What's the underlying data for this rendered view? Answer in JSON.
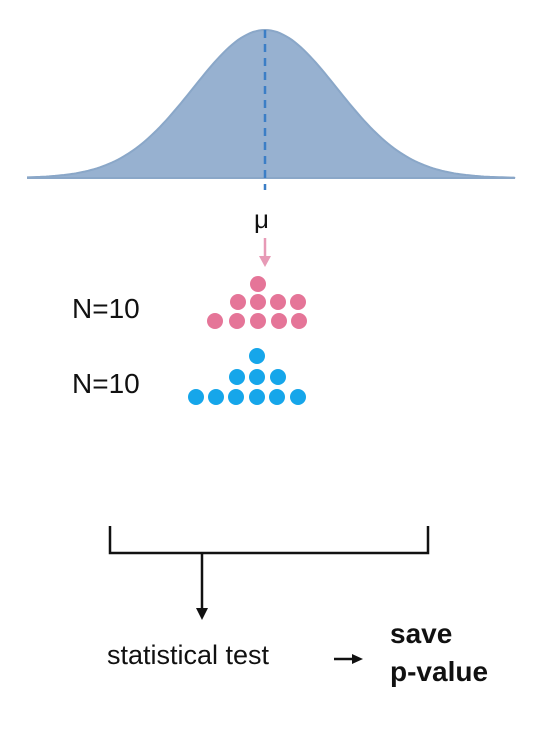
{
  "diagram": {
    "distribution": {
      "mean_label": "μ",
      "fill_color": "#97b1d0",
      "mean_line_color": "#3b7ec6"
    },
    "samples": [
      {
        "label": "N=10",
        "color": "#e57598",
        "count": 10
      },
      {
        "label": "N=10",
        "color": "#16a6ea",
        "count": 10
      }
    ],
    "sample_arrow_color": "#e79ab6",
    "test": {
      "label": "statistical test",
      "result_line1": "save",
      "result_line2": "p-value"
    }
  }
}
